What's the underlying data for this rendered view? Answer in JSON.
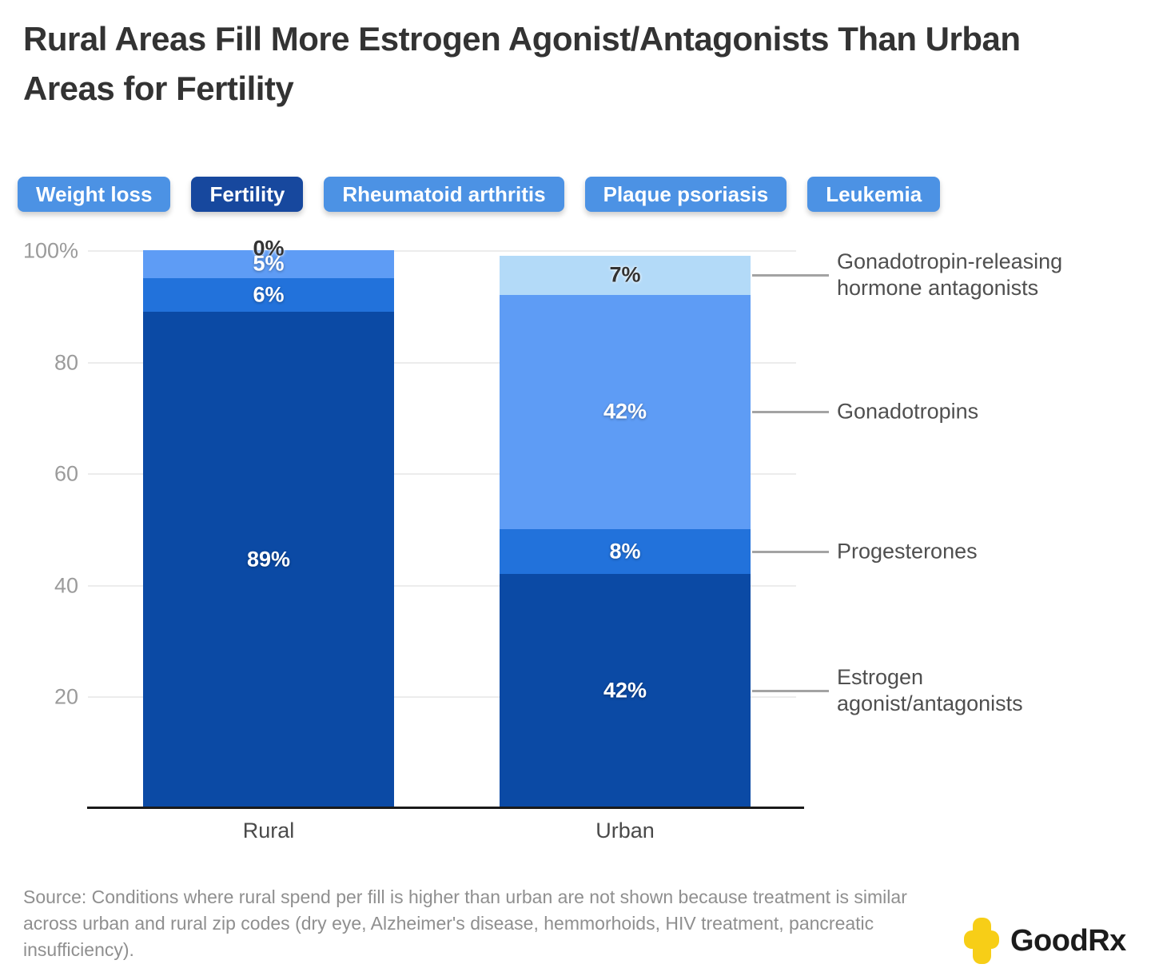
{
  "title": "Rural Areas Fill More Estrogen Agonist/Antagonists Than Urban Areas for Fertility",
  "tabs": [
    {
      "label": "Weight loss",
      "selected": false
    },
    {
      "label": "Fertility",
      "selected": true
    },
    {
      "label": "Rheumatoid arthritis",
      "selected": false
    },
    {
      "label": "Plaque psoriasis",
      "selected": false
    },
    {
      "label": "Leukemia",
      "selected": false
    }
  ],
  "tab_colors": {
    "unselected": "#4C92E4",
    "selected": "#17489E",
    "text": "#FFFFFF"
  },
  "chart_data": {
    "type": "bar",
    "variant": "stacked-percentage-column",
    "title": "Rural Areas Fill More Estrogen Agonist/Antagonists Than Urban Areas for Fertility",
    "categories": [
      "Rural",
      "Urban"
    ],
    "series": [
      {
        "name": "Estrogen agonist/antagonists",
        "color": "#0B4AA5",
        "values": [
          89,
          42
        ],
        "label_style": "light"
      },
      {
        "name": "Progesterones",
        "color": "#2272DB",
        "values": [
          6,
          8
        ],
        "label_style": "light"
      },
      {
        "name": "Gonadotropins",
        "color": "#5E9CF5",
        "values": [
          5,
          42
        ],
        "label_style": "light"
      },
      {
        "name": "Gonadotropin-releasing hormone antagonists",
        "color": "#B3DAF8",
        "values": [
          0,
          7
        ],
        "label_style": "dark"
      }
    ],
    "segment_label_suffix": "%",
    "ylim": [
      0,
      100
    ],
    "yticks": [
      {
        "label": "100%",
        "value": 100
      },
      {
        "label": "80",
        "value": 80
      },
      {
        "label": "60",
        "value": 60
      },
      {
        "label": "40",
        "value": 40
      },
      {
        "label": "20",
        "value": 20
      }
    ],
    "grid": true,
    "gridline_color": "#ECECEC",
    "axis_line_color": "#1A1A1A",
    "legend_position": "right-annotations",
    "annotations_target_category": "Urban"
  },
  "source": {
    "text": "Source: Conditions where rural spend per fill is higher than urban are not shown because treatment is similar across urban and rural zip codes (dry eye, Alzheimer's disease, hemmorhoids, HIV treatment, pancreatic insufficiency)."
  },
  "logo": {
    "text": "GoodRx",
    "cross_color": "#F7CE17",
    "text_color": "#1C1C1C"
  }
}
